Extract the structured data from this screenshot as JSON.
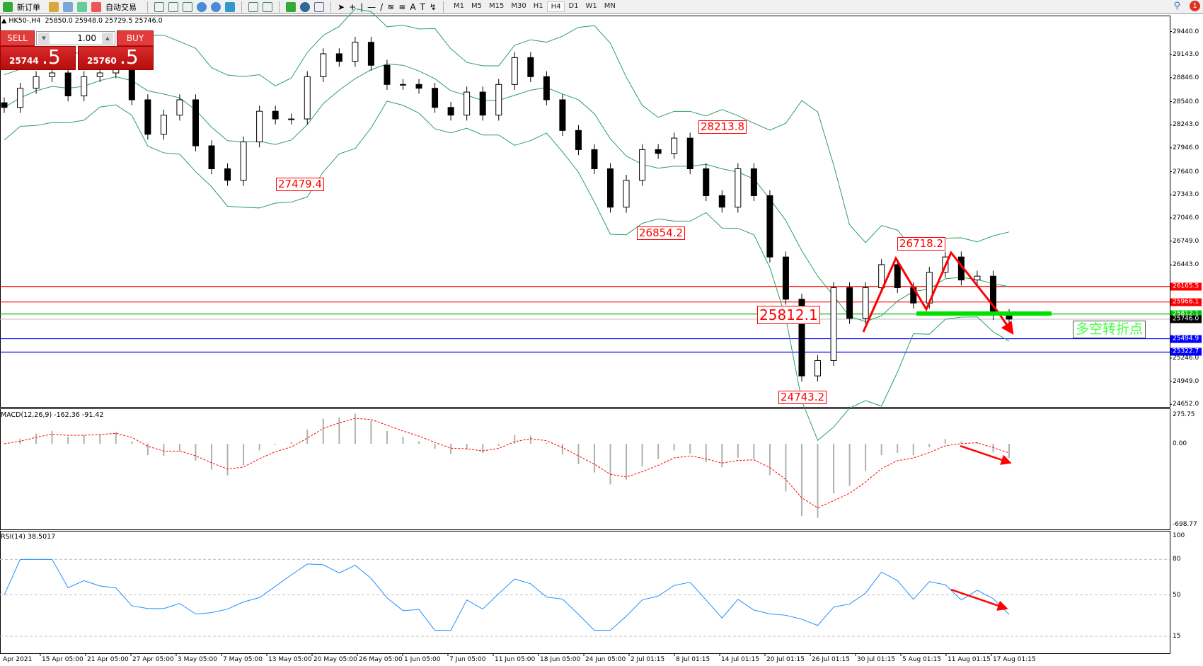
{
  "toolbar": {
    "new_order": "新订单",
    "auto_trade": "自动交易",
    "timeframes": [
      "M1",
      "M5",
      "M15",
      "M30",
      "H1",
      "H4",
      "D1",
      "W1",
      "MN"
    ],
    "selected_timeframe": "H4",
    "notification_count": "1"
  },
  "header": {
    "symbol": "HK50-,H4",
    "ohlc": "25850.0 25948.0 25729.5 25746.0"
  },
  "trade_panel": {
    "sell_label": "SELL",
    "buy_label": "BUY",
    "lot": "1.00",
    "sell_price_main": "25744",
    "sell_price_big": ".5",
    "buy_price_main": "25760",
    "buy_price_big": ".5"
  },
  "colors": {
    "bands": "#2e9e5e",
    "red": "#ff0000",
    "green": "#00e000",
    "blue": "#0000ff",
    "macd_hist": "#b0b0b0"
  },
  "chart_data": [
    {
      "type": "candlestick",
      "title": "HK50-,H4",
      "ylim": [
        24652.0,
        29440.0
      ],
      "y_ticks": [
        "29440.0",
        "29143.0",
        "28846.0",
        "28540.0",
        "28243.0",
        "27946.0",
        "27640.0",
        "27343.0",
        "27046.0",
        "26749.0",
        "26443.0",
        "25246.0",
        "24949.0",
        "24652.0"
      ],
      "x_ticks": [
        "Apr 2021",
        "15 Apr 05:00",
        "21 Apr 05:00",
        "27 Apr 05:00",
        "3 May 05:00",
        "7 May 05:00",
        "13 May 05:00",
        "20 May 05:00",
        "26 May 05:00",
        "1 Jun 05:00",
        "7 Jun 05:00",
        "11 Jun 05:00",
        "18 Jun 05:00",
        "24 Jun 05:00",
        "2 Jul 01:15",
        "8 Jul 01:15",
        "14 Jul 01:15",
        "20 Jul 01:15",
        "26 Jul 01:15",
        "30 Jul 01:15",
        "5 Aug 01:15",
        "11 Aug 01:15",
        "17 Aug 01:15"
      ],
      "closes": [
        28465,
        28711,
        28860,
        28908,
        28613,
        28860,
        28908,
        29006,
        28563,
        28120,
        28366,
        28563,
        27972,
        27677,
        27529,
        28022,
        28416,
        28317,
        28317,
        28860,
        29154,
        29056,
        29302,
        29006,
        28760,
        28760,
        28711,
        28465,
        28366,
        28662,
        28366,
        28760,
        29105,
        28860,
        28563,
        28169,
        27923,
        27677,
        27184,
        27529,
        27923,
        27874,
        28071,
        27677,
        27332,
        27184,
        27677,
        27332,
        26544,
        26002,
        25017,
        25214,
        26150,
        25756,
        26150,
        26446,
        26150,
        25953,
        26347,
        26544,
        26249,
        26298,
        25805,
        25746
      ],
      "overlay": "Bollinger Bands",
      "hlines": [
        {
          "value": "26165.5",
          "color": "#ff0000"
        },
        {
          "value": "25966.1",
          "color": "#ff0000"
        },
        {
          "value": "25812.1",
          "color": "#00c000"
        },
        {
          "value": "25746.0",
          "color": "#000000"
        },
        {
          "value": "25494.9",
          "color": "#0000ff"
        },
        {
          "value": "25322.7",
          "color": "#0000ff"
        }
      ],
      "annotations": {
        "low1": "27479.4",
        "low2": "26854.2",
        "high1": "28213.8",
        "high2": "26718.2",
        "low3": "24743.2",
        "pivot": "25812.1",
        "pivot_text": "多空转折点"
      }
    },
    {
      "type": "bar",
      "title": "MACD(12,26,9) -162.36 -91.42",
      "ylim": [
        -698.77,
        275.75
      ],
      "y_ticks": [
        "275.75",
        "0.00",
        "-698.77"
      ]
    },
    {
      "type": "line",
      "title": "RSI(14) 38.5017",
      "ylim": [
        0,
        100
      ],
      "y_ticks": [
        "100",
        "80",
        "50",
        "15"
      ],
      "levels": [
        80,
        50,
        15
      ]
    }
  ]
}
